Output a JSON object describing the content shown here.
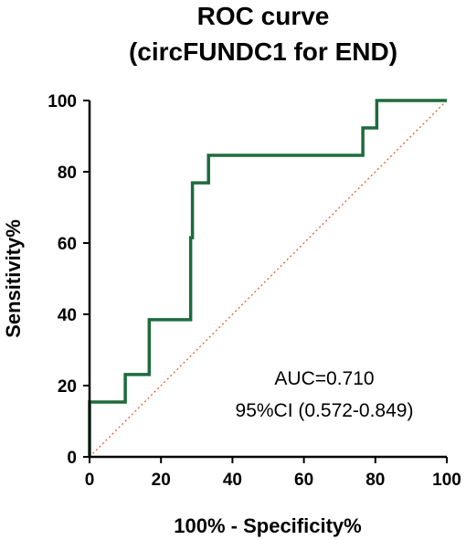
{
  "chart_data": {
    "type": "line",
    "title_line1": "ROC curve",
    "title_line2": "(circFUNDC1 for END)",
    "xlabel": "100% - Specificity%",
    "ylabel": "Sensitivity%",
    "xlim": [
      0,
      100
    ],
    "ylim": [
      0,
      100
    ],
    "xticks": [
      0,
      20,
      40,
      60,
      80,
      100
    ],
    "yticks": [
      0,
      20,
      40,
      60,
      80,
      100
    ],
    "grid": false,
    "series": [
      {
        "color": "#1e6b3d",
        "x": [
          0,
          0,
          10,
          10,
          16.7,
          16.7,
          28.3,
          28.3,
          28.8,
          28.8,
          33.3,
          33.3,
          76.5,
          76.5,
          80.4,
          80.4,
          100
        ],
        "y": [
          0,
          15.4,
          15.4,
          23.1,
          23.1,
          38.5,
          38.5,
          61.5,
          61.5,
          76.9,
          76.9,
          84.6,
          84.6,
          92.3,
          92.3,
          100,
          100
        ]
      }
    ],
    "reference_line": {
      "x": [
        0,
        100
      ],
      "y": [
        0,
        100
      ],
      "color": "#e06030",
      "style": "dotted"
    },
    "annotations": [
      "AUC=0.710",
      "95%CI (0.572-0.849)"
    ]
  }
}
